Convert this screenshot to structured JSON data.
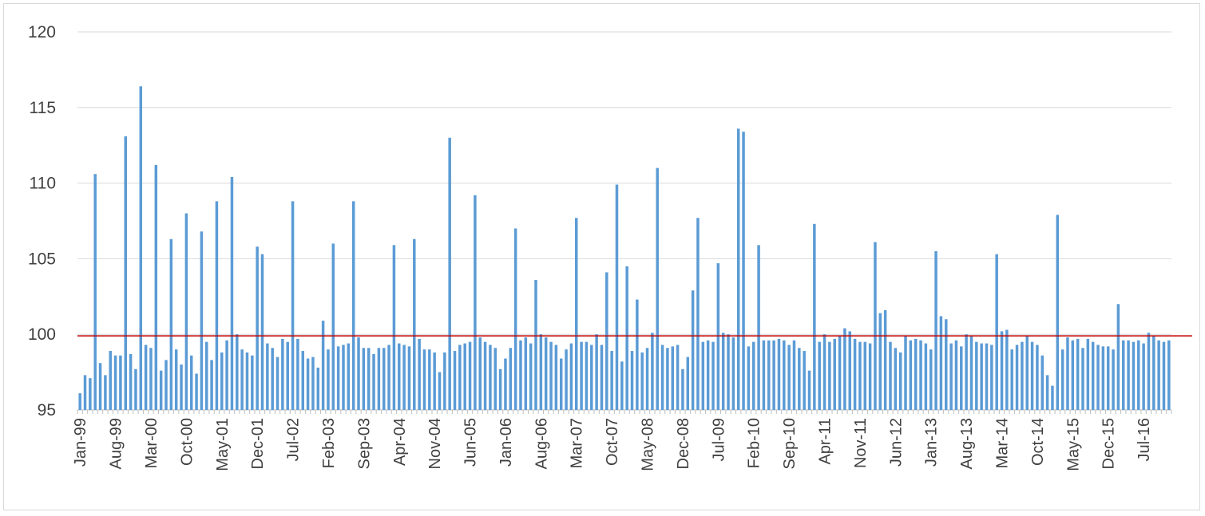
{
  "chart_data": {
    "type": "bar",
    "title": "",
    "xlabel": "",
    "ylabel": "",
    "ylim": [
      95,
      120
    ],
    "y_ticks": [
      "95",
      "100",
      "105",
      "110",
      "115",
      "120"
    ],
    "gridlines": true,
    "legend": "none",
    "x_tick_labels": [
      "Jan-99",
      "Aug-99",
      "Mar-00",
      "Oct-00",
      "May-01",
      "Dec-01",
      "Jul-02",
      "Feb-03",
      "Sep-03",
      "Apr-04",
      "Nov-04",
      "Jun-05",
      "Jan-06",
      "Aug-06",
      "Mar-07",
      "Oct-07",
      "May-08",
      "Dec-08",
      "Jul-09",
      "Feb-10",
      "Sep-10",
      "Apr-11",
      "Nov-11",
      "Jun-12",
      "Jan-13",
      "Aug-13",
      "Mar-14",
      "Oct-14",
      "May-15",
      "Dec-15",
      "Jul-16"
    ],
    "start_month": "Jan-99",
    "reference_line": {
      "value": 99.9,
      "color": "#c00000"
    },
    "series": [
      {
        "color": "#5b9bd5",
        "values": [
          96.1,
          97.3,
          97.1,
          110.6,
          98.1,
          97.3,
          98.9,
          98.6,
          98.6,
          113.1,
          98.7,
          97.7,
          116.4,
          99.3,
          99.1,
          111.2,
          97.6,
          98.3,
          106.3,
          99.0,
          98.0,
          108.0,
          98.6,
          97.4,
          106.8,
          99.5,
          98.3,
          108.8,
          98.8,
          99.6,
          110.4,
          100.0,
          99.0,
          98.8,
          98.6,
          105.8,
          105.3,
          99.4,
          99.1,
          98.5,
          99.7,
          99.5,
          108.8,
          99.7,
          98.9,
          98.4,
          98.5,
          97.8,
          100.9,
          99.0,
          106.0,
          99.2,
          99.3,
          99.4,
          108.8,
          99.8,
          99.1,
          99.1,
          98.7,
          99.1,
          99.1,
          99.3,
          105.9,
          99.4,
          99.3,
          99.2,
          106.3,
          99.7,
          99.0,
          99.0,
          98.8,
          97.5,
          98.8,
          113.0,
          98.9,
          99.3,
          99.4,
          99.5,
          109.2,
          99.8,
          99.5,
          99.3,
          99.1,
          97.7,
          98.4,
          99.1,
          107.0,
          99.6,
          99.8,
          99.4,
          103.6,
          100.0,
          99.8,
          99.5,
          99.3,
          98.4,
          99.0,
          99.4,
          107.7,
          99.5,
          99.5,
          99.3,
          100.0,
          99.3,
          104.1,
          98.9,
          109.9,
          98.2,
          104.5,
          98.9,
          102.3,
          98.8,
          99.1,
          100.1,
          111.0,
          99.3,
          99.1,
          99.2,
          99.3,
          97.7,
          98.5,
          102.9,
          107.7,
          99.5,
          99.6,
          99.5,
          104.7,
          100.1,
          100.0,
          99.8,
          113.6,
          113.4,
          99.2,
          99.5,
          105.9,
          99.6,
          99.6,
          99.6,
          99.7,
          99.6,
          99.3,
          99.6,
          99.1,
          98.9,
          97.6,
          107.3,
          99.5,
          100.0,
          99.5,
          99.7,
          99.9,
          100.4,
          100.2,
          99.7,
          99.5,
          99.5,
          99.4,
          106.1,
          101.4,
          101.6,
          99.5,
          99.1,
          98.8,
          99.9,
          99.6,
          99.7,
          99.6,
          99.4,
          99.0,
          105.5,
          101.2,
          101.0,
          99.4,
          99.6,
          99.2,
          100.0,
          99.9,
          99.5,
          99.4,
          99.4,
          99.3,
          105.3,
          100.2,
          100.3,
          99.0,
          99.3,
          99.5,
          99.9,
          99.5,
          99.3,
          98.6,
          97.3,
          96.6,
          107.9,
          99.0,
          99.8,
          99.6,
          99.7,
          99.1,
          99.7,
          99.5,
          99.3,
          99.2,
          99.2,
          99.0,
          102.0,
          99.6,
          99.6,
          99.5,
          99.6,
          99.4,
          100.1,
          99.9,
          99.6,
          99.5,
          99.6
        ]
      }
    ]
  }
}
